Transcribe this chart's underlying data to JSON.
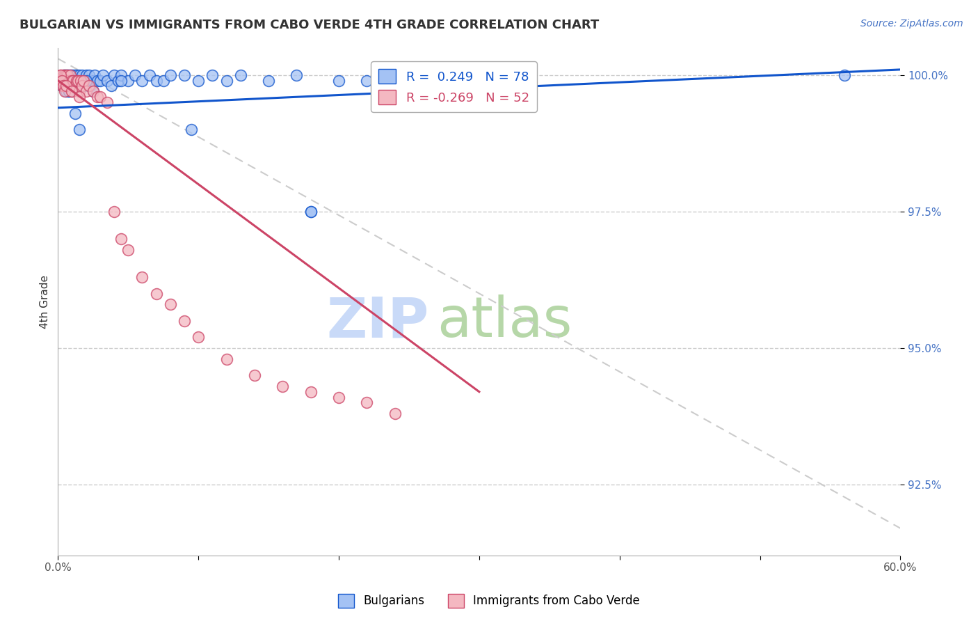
{
  "title": "BULGARIAN VS IMMIGRANTS FROM CABO VERDE 4TH GRADE CORRELATION CHART",
  "source": "Source: ZipAtlas.com",
  "ylabel": "4th Grade",
  "xlim": [
    0.0,
    0.6
  ],
  "ylim": [
    0.912,
    1.005
  ],
  "xtick_labels": [
    "0.0%",
    "",
    "",
    "",
    "",
    "",
    "60.0%"
  ],
  "xtick_vals": [
    0.0,
    0.1,
    0.2,
    0.3,
    0.4,
    0.5,
    0.6
  ],
  "ytick_labels": [
    "92.5%",
    "95.0%",
    "97.5%",
    "100.0%"
  ],
  "ytick_vals": [
    0.925,
    0.95,
    0.975,
    1.0
  ],
  "blue_R": 0.249,
  "blue_N": 78,
  "pink_R": -0.269,
  "pink_N": 52,
  "blue_color": "#a4c2f4",
  "pink_color": "#f4b8c1",
  "blue_line_color": "#1155cc",
  "pink_line_color": "#cc4466",
  "watermark_zip": "ZIP",
  "watermark_atlas": "atlas",
  "watermark_color_zip": "#c9daf8",
  "watermark_color_atlas": "#b6d7a8",
  "legend_box_color": "#e8f0fe",
  "blue_scatter_x": [
    0.002,
    0.003,
    0.003,
    0.004,
    0.004,
    0.004,
    0.005,
    0.005,
    0.005,
    0.006,
    0.006,
    0.006,
    0.006,
    0.007,
    0.007,
    0.007,
    0.008,
    0.008,
    0.008,
    0.009,
    0.009,
    0.01,
    0.01,
    0.01,
    0.011,
    0.011,
    0.012,
    0.012,
    0.013,
    0.013,
    0.014,
    0.015,
    0.015,
    0.016,
    0.017,
    0.018,
    0.019,
    0.02,
    0.021,
    0.022,
    0.023,
    0.025,
    0.026,
    0.028,
    0.03,
    0.032,
    0.035,
    0.038,
    0.04,
    0.043,
    0.045,
    0.05,
    0.055,
    0.06,
    0.065,
    0.07,
    0.075,
    0.08,
    0.09,
    0.1,
    0.11,
    0.12,
    0.13,
    0.15,
    0.17,
    0.18,
    0.2,
    0.22,
    0.045,
    0.095,
    0.18,
    0.56,
    0.005,
    0.008,
    0.012,
    0.015,
    0.02,
    0.025
  ],
  "blue_scatter_y": [
    0.999,
    0.999,
    0.998,
    1.0,
    0.999,
    0.998,
    1.0,
    0.999,
    0.998,
    1.0,
    0.999,
    0.998,
    0.997,
    1.0,
    0.999,
    0.998,
    1.0,
    0.999,
    0.997,
    1.0,
    0.998,
    1.0,
    0.999,
    0.997,
    1.0,
    0.998,
    1.0,
    0.999,
    1.0,
    0.998,
    0.999,
    1.0,
    0.998,
    0.999,
    1.0,
    0.999,
    0.998,
    1.0,
    0.999,
    1.0,
    0.998,
    0.999,
    1.0,
    0.999,
    0.999,
    1.0,
    0.999,
    0.998,
    1.0,
    0.999,
    1.0,
    0.999,
    1.0,
    0.999,
    1.0,
    0.999,
    0.999,
    1.0,
    1.0,
    0.999,
    1.0,
    0.999,
    1.0,
    0.999,
    1.0,
    0.975,
    0.999,
    0.999,
    0.999,
    0.99,
    0.975,
    1.0,
    0.999,
    0.997,
    0.993,
    0.99,
    0.999,
    0.997
  ],
  "pink_scatter_x": [
    0.002,
    0.003,
    0.003,
    0.004,
    0.004,
    0.005,
    0.005,
    0.006,
    0.006,
    0.007,
    0.007,
    0.008,
    0.008,
    0.009,
    0.01,
    0.01,
    0.011,
    0.012,
    0.013,
    0.014,
    0.015,
    0.016,
    0.017,
    0.018,
    0.02,
    0.022,
    0.025,
    0.028,
    0.03,
    0.035,
    0.04,
    0.045,
    0.05,
    0.06,
    0.07,
    0.08,
    0.09,
    0.1,
    0.12,
    0.14,
    0.16,
    0.18,
    0.2,
    0.22,
    0.24,
    0.002,
    0.003,
    0.004,
    0.005,
    0.006,
    0.01,
    0.015
  ],
  "pink_scatter_y": [
    1.0,
    0.999,
    0.998,
    1.0,
    0.999,
    1.0,
    0.998,
    1.0,
    0.999,
    1.0,
    0.998,
    0.999,
    0.998,
    1.0,
    0.999,
    0.997,
    0.999,
    0.998,
    0.999,
    0.999,
    0.997,
    0.999,
    0.998,
    0.999,
    0.997,
    0.998,
    0.997,
    0.996,
    0.996,
    0.995,
    0.975,
    0.97,
    0.968,
    0.963,
    0.96,
    0.958,
    0.955,
    0.952,
    0.948,
    0.945,
    0.943,
    0.942,
    0.941,
    0.94,
    0.938,
    1.0,
    0.999,
    0.998,
    0.997,
    0.998,
    0.997,
    0.996
  ],
  "diag_line_x": [
    0.0,
    0.6
  ],
  "diag_line_y": [
    1.003,
    0.917
  ],
  "blue_line_x": [
    0.0,
    0.6
  ],
  "blue_line_y": [
    0.994,
    1.001
  ],
  "pink_line_x": [
    0.0,
    0.3
  ],
  "pink_line_y": [
    0.999,
    0.942
  ]
}
